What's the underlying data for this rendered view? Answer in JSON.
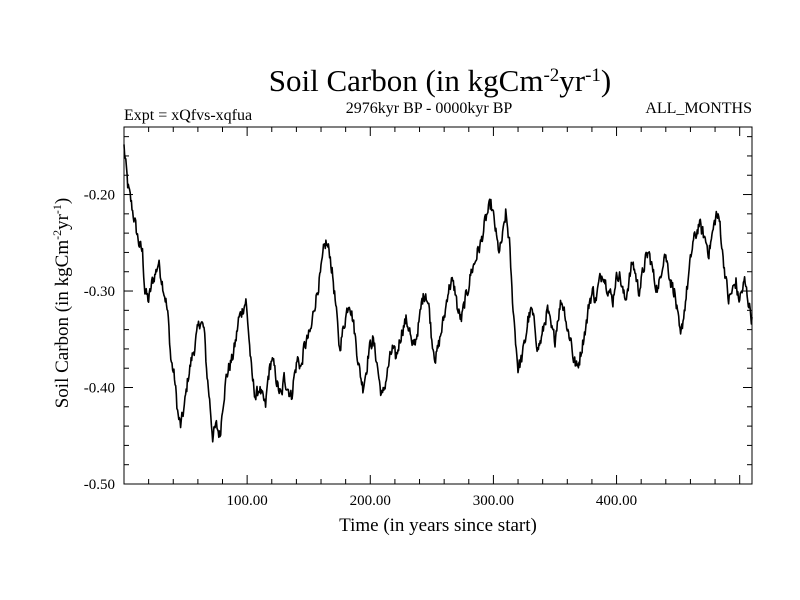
{
  "chart_data": {
    "type": "line",
    "title": {
      "main": "Soil Carbon (in kgCm",
      "sup1": "-2",
      "mid": "yr",
      "sup2": "-1",
      "end": ")"
    },
    "subtitle_left": "Expt = xQfvs-xqfua",
    "subtitle_center": "2976kyr BP - 0000kyr BP",
    "subtitle_right": "ALL_MONTHS",
    "xlabel": "Time (in years since start)",
    "ylabel": {
      "main": "Soil Carbon (in kgCm",
      "sup1": "-2",
      "mid": "yr",
      "sup2": "-1",
      "end": ")"
    },
    "xlim": [
      0,
      510
    ],
    "ylim": [
      -0.5,
      -0.13
    ],
    "x_ticks": [
      100,
      200,
      300,
      400
    ],
    "x_tick_labels": [
      "100.00",
      "200.00",
      "300.00",
      "400.00"
    ],
    "y_ticks": [
      -0.5,
      -0.4,
      -0.3,
      -0.2
    ],
    "y_tick_labels": [
      "-0.50",
      "-0.40",
      "-0.30",
      "-0.20"
    ],
    "series": [
      {
        "name": "Soil Carbon",
        "color": "#000000",
        "anchors": [
          [
            0,
            -0.15
          ],
          [
            3,
            -0.19
          ],
          [
            6,
            -0.21
          ],
          [
            9,
            -0.23
          ],
          [
            12,
            -0.25
          ],
          [
            15,
            -0.26
          ],
          [
            17,
            -0.3
          ],
          [
            20,
            -0.31
          ],
          [
            23,
            -0.29
          ],
          [
            26,
            -0.28
          ],
          [
            28,
            -0.27
          ],
          [
            31,
            -0.29
          ],
          [
            34,
            -0.31
          ],
          [
            36,
            -0.33
          ],
          [
            38,
            -0.37
          ],
          [
            41,
            -0.39
          ],
          [
            44,
            -0.43
          ],
          [
            46,
            -0.44
          ],
          [
            49,
            -0.42
          ],
          [
            52,
            -0.39
          ],
          [
            55,
            -0.37
          ],
          [
            57,
            -0.36
          ],
          [
            60,
            -0.34
          ],
          [
            62,
            -0.33
          ],
          [
            65,
            -0.34
          ],
          [
            67,
            -0.38
          ],
          [
            70,
            -0.42
          ],
          [
            72,
            -0.45
          ],
          [
            75,
            -0.44
          ],
          [
            78,
            -0.45
          ],
          [
            80,
            -0.42
          ],
          [
            83,
            -0.39
          ],
          [
            85,
            -0.38
          ],
          [
            88,
            -0.37
          ],
          [
            91,
            -0.35
          ],
          [
            93,
            -0.33
          ],
          [
            96,
            -0.32
          ],
          [
            99,
            -0.31
          ],
          [
            101,
            -0.34
          ],
          [
            104,
            -0.39
          ],
          [
            107,
            -0.41
          ],
          [
            110,
            -0.4
          ],
          [
            112,
            -0.41
          ],
          [
            115,
            -0.42
          ],
          [
            117,
            -0.39
          ],
          [
            120,
            -0.37
          ],
          [
            122,
            -0.38
          ],
          [
            125,
            -0.4
          ],
          [
            128,
            -0.41
          ],
          [
            130,
            -0.39
          ],
          [
            133,
            -0.4
          ],
          [
            136,
            -0.41
          ],
          [
            138,
            -0.39
          ],
          [
            141,
            -0.37
          ],
          [
            144,
            -0.38
          ],
          [
            146,
            -0.36
          ],
          [
            149,
            -0.35
          ],
          [
            152,
            -0.34
          ],
          [
            154,
            -0.32
          ],
          [
            157,
            -0.3
          ],
          [
            160,
            -0.28
          ],
          [
            162,
            -0.26
          ],
          [
            164,
            -0.25
          ],
          [
            167,
            -0.26
          ],
          [
            170,
            -0.29
          ],
          [
            173,
            -0.33
          ],
          [
            175,
            -0.36
          ],
          [
            178,
            -0.34
          ],
          [
            181,
            -0.32
          ],
          [
            183,
            -0.31
          ],
          [
            186,
            -0.33
          ],
          [
            189,
            -0.36
          ],
          [
            191,
            -0.38
          ],
          [
            194,
            -0.4
          ],
          [
            197,
            -0.38
          ],
          [
            199,
            -0.36
          ],
          [
            202,
            -0.35
          ],
          [
            205,
            -0.37
          ],
          [
            208,
            -0.4
          ],
          [
            210,
            -0.41
          ],
          [
            213,
            -0.39
          ],
          [
            216,
            -0.37
          ],
          [
            218,
            -0.36
          ],
          [
            221,
            -0.37
          ],
          [
            224,
            -0.35
          ],
          [
            226,
            -0.34
          ],
          [
            229,
            -0.33
          ],
          [
            232,
            -0.34
          ],
          [
            234,
            -0.36
          ],
          [
            237,
            -0.35
          ],
          [
            240,
            -0.33
          ],
          [
            242,
            -0.31
          ],
          [
            245,
            -0.3
          ],
          [
            248,
            -0.32
          ],
          [
            250,
            -0.35
          ],
          [
            253,
            -0.37
          ],
          [
            255,
            -0.36
          ],
          [
            258,
            -0.34
          ],
          [
            261,
            -0.32
          ],
          [
            263,
            -0.3
          ],
          [
            266,
            -0.29
          ],
          [
            269,
            -0.3
          ],
          [
            271,
            -0.32
          ],
          [
            274,
            -0.33
          ],
          [
            277,
            -0.31
          ],
          [
            279,
            -0.3
          ],
          [
            282,
            -0.28
          ],
          [
            285,
            -0.27
          ],
          [
            287,
            -0.26
          ],
          [
            290,
            -0.25
          ],
          [
            293,
            -0.23
          ],
          [
            295,
            -0.22
          ],
          [
            298,
            -0.21
          ],
          [
            301,
            -0.23
          ],
          [
            303,
            -0.25
          ],
          [
            305,
            -0.26
          ],
          [
            308,
            -0.24
          ],
          [
            310,
            -0.22
          ],
          [
            313,
            -0.25
          ],
          [
            315,
            -0.3
          ],
          [
            318,
            -0.35
          ],
          [
            320,
            -0.38
          ],
          [
            323,
            -0.37
          ],
          [
            326,
            -0.35
          ],
          [
            328,
            -0.33
          ],
          [
            331,
            -0.32
          ],
          [
            334,
            -0.34
          ],
          [
            336,
            -0.36
          ],
          [
            339,
            -0.35
          ],
          [
            342,
            -0.33
          ],
          [
            344,
            -0.32
          ],
          [
            347,
            -0.34
          ],
          [
            350,
            -0.35
          ],
          [
            352,
            -0.33
          ],
          [
            355,
            -0.31
          ],
          [
            358,
            -0.32
          ],
          [
            360,
            -0.34
          ],
          [
            363,
            -0.35
          ],
          [
            365,
            -0.37
          ],
          [
            368,
            -0.38
          ],
          [
            370,
            -0.37
          ],
          [
            373,
            -0.35
          ],
          [
            376,
            -0.33
          ],
          [
            378,
            -0.31
          ],
          [
            381,
            -0.3
          ],
          [
            383,
            -0.31
          ],
          [
            386,
            -0.29
          ],
          [
            389,
            -0.28
          ],
          [
            391,
            -0.29
          ],
          [
            394,
            -0.3
          ],
          [
            397,
            -0.31
          ],
          [
            399,
            -0.29
          ],
          [
            402,
            -0.28
          ],
          [
            405,
            -0.3
          ],
          [
            407,
            -0.31
          ],
          [
            410,
            -0.29
          ],
          [
            413,
            -0.27
          ],
          [
            415,
            -0.28
          ],
          [
            418,
            -0.3
          ],
          [
            420,
            -0.29
          ],
          [
            423,
            -0.27
          ],
          [
            426,
            -0.26
          ],
          [
            428,
            -0.27
          ],
          [
            431,
            -0.29
          ],
          [
            434,
            -0.3
          ],
          [
            436,
            -0.28
          ],
          [
            439,
            -0.26
          ],
          [
            441,
            -0.27
          ],
          [
            444,
            -0.29
          ],
          [
            447,
            -0.3
          ],
          [
            449,
            -0.32
          ],
          [
            452,
            -0.35
          ],
          [
            454,
            -0.33
          ],
          [
            457,
            -0.3
          ],
          [
            460,
            -0.27
          ],
          [
            462,
            -0.25
          ],
          [
            465,
            -0.24
          ],
          [
            467,
            -0.23
          ],
          [
            470,
            -0.24
          ],
          [
            473,
            -0.25
          ],
          [
            475,
            -0.26
          ],
          [
            478,
            -0.24
          ],
          [
            481,
            -0.22
          ],
          [
            484,
            -0.23
          ],
          [
            486,
            -0.26
          ],
          [
            489,
            -0.29
          ],
          [
            491,
            -0.31
          ],
          [
            494,
            -0.3
          ],
          [
            497,
            -0.29
          ],
          [
            499,
            -0.31
          ],
          [
            502,
            -0.3
          ],
          [
            504,
            -0.29
          ],
          [
            507,
            -0.31
          ],
          [
            510,
            -0.33
          ]
        ]
      }
    ]
  }
}
